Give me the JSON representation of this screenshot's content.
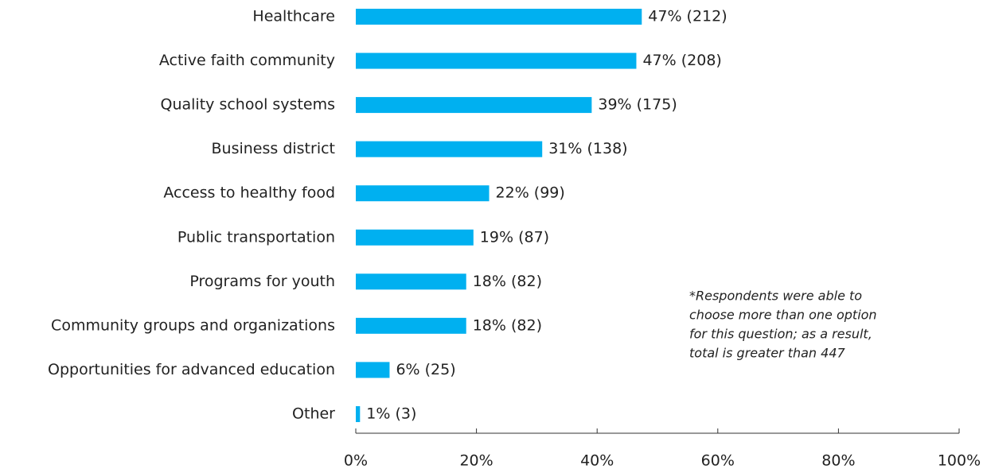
{
  "chart_data": {
    "type": "bar",
    "orientation": "horizontal",
    "categories": [
      "Healthcare",
      "Active faith community",
      "Quality school systems",
      "Business district",
      "Access to healthy food",
      "Public transportation",
      "Programs for youth",
      "Community groups and organizations",
      "Opportunities for advanced education",
      "Other"
    ],
    "values": [
      47.4,
      46.5,
      39.1,
      30.9,
      22.1,
      19.5,
      18.3,
      18.3,
      5.6,
      0.7
    ],
    "value_labels": [
      "47% (212)",
      "47% (208)",
      "39% (175)",
      "31% (138)",
      "22% (99)",
      "19% (87)",
      "18% (82)",
      "18% (82)",
      "6% (25)",
      "1% (3)"
    ],
    "color": "#00b0f0",
    "xlim": [
      0,
      100
    ],
    "xticks": [
      {
        "value": 0,
        "label": "0%"
      },
      {
        "value": 20,
        "label": "20%"
      },
      {
        "value": 40,
        "label": "40%"
      },
      {
        "value": 60,
        "label": "60%"
      },
      {
        "value": 80,
        "label": "80%"
      },
      {
        "value": 100,
        "label": "100%"
      }
    ],
    "grid": false,
    "annotation": [
      "*Respondents were able to",
      "choose more than one option",
      "for this question; as a result,",
      "total is greater than 447"
    ]
  }
}
